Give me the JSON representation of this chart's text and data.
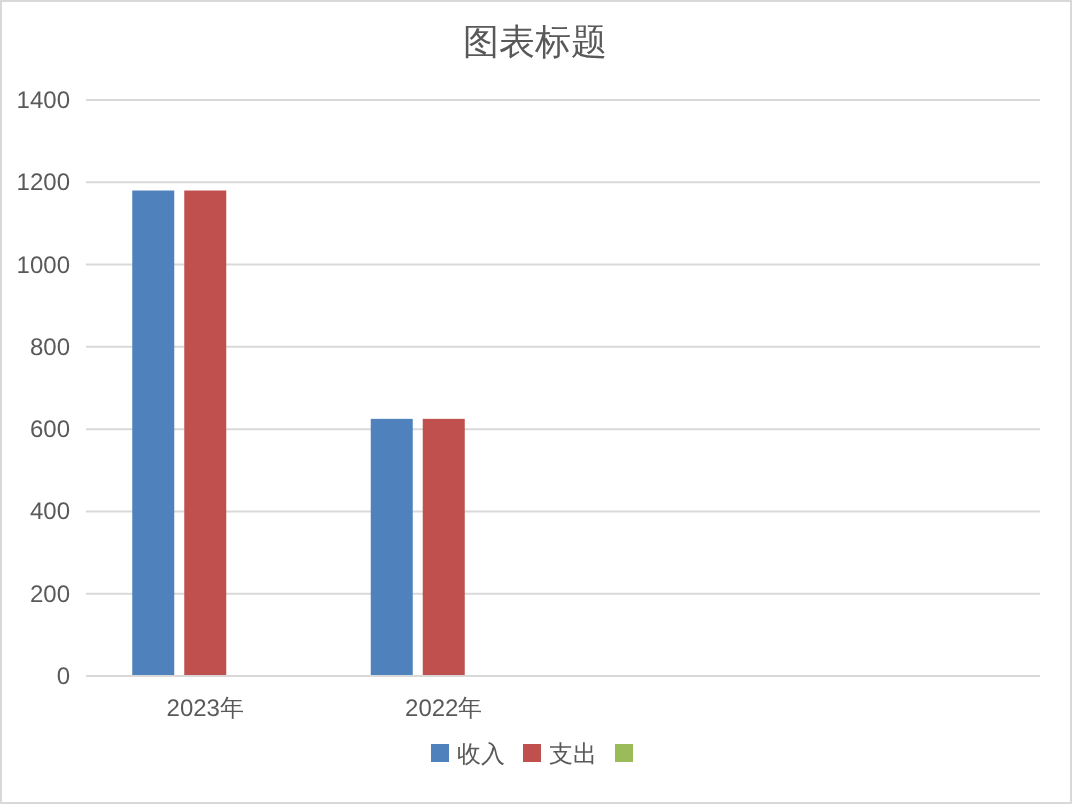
{
  "chart_data": {
    "type": "bar",
    "title": "图表标题",
    "categories": [
      "2023年",
      "2022年",
      null,
      null
    ],
    "series": [
      {
        "name": "收入",
        "color": "#4f81bd",
        "values": [
          1180,
          625,
          null,
          null
        ]
      },
      {
        "name": "支出",
        "color": "#c0504d",
        "values": [
          1180,
          625,
          null,
          null
        ]
      },
      {
        "color": "#9bbb59",
        "values": [
          null,
          null,
          null,
          null
        ]
      }
    ],
    "ylim": [
      0,
      1400
    ],
    "yticks": [
      0,
      200,
      400,
      600,
      800,
      1000,
      1200,
      1400
    ],
    "grid": "y",
    "legend": "bottom"
  }
}
